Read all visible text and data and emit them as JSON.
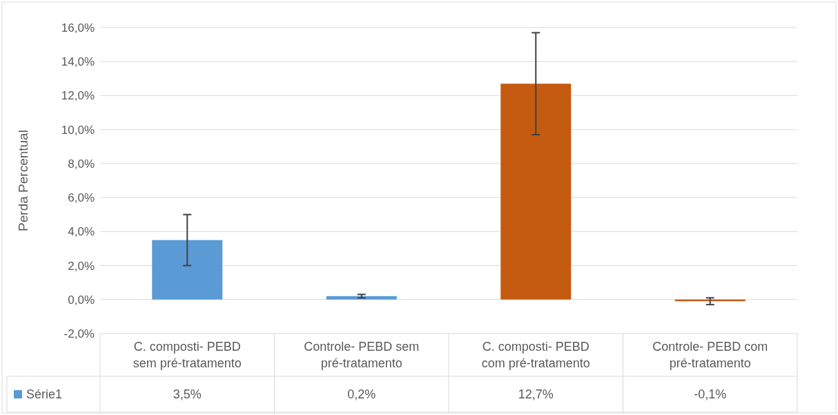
{
  "chart_data": {
    "type": "bar",
    "ylabel": "Perda Percentual",
    "categories": [
      "C. composti- PEBD sem pré-tratamento",
      "Controle- PEBD sem pré-tratamento",
      "C. composti- PEBD com pré-tratamento",
      "Controle- PEBD com pré-tratamento"
    ],
    "series": [
      {
        "name": "Série1",
        "color": "#5b9bd5",
        "colors": [
          "#5b9bd5",
          "#5b9bd5",
          "#c55a11",
          "#c55a11"
        ],
        "values": [
          3.5,
          0.2,
          12.7,
          -0.1
        ],
        "errors": [
          1.5,
          0.1,
          3.0,
          0.2
        ],
        "value_labels": [
          "3,5%",
          "0,2%",
          "12,7%",
          "-0,1%"
        ]
      }
    ],
    "ylim": [
      -2,
      16
    ],
    "yticks": [
      {
        "value": -2,
        "label": "-2,0%"
      },
      {
        "value": 0,
        "label": "0,0%"
      },
      {
        "value": 2,
        "label": "2,0%"
      },
      {
        "value": 4,
        "label": "4,0%"
      },
      {
        "value": 6,
        "label": "6,0%"
      },
      {
        "value": 8,
        "label": "8,0%"
      },
      {
        "value": 10,
        "label": "10,0%"
      },
      {
        "value": 12,
        "label": "12,0%"
      },
      {
        "value": 14,
        "label": "14,0%"
      },
      {
        "value": 16,
        "label": "16,0%"
      }
    ],
    "grid": "y",
    "legend": "bottom"
  }
}
